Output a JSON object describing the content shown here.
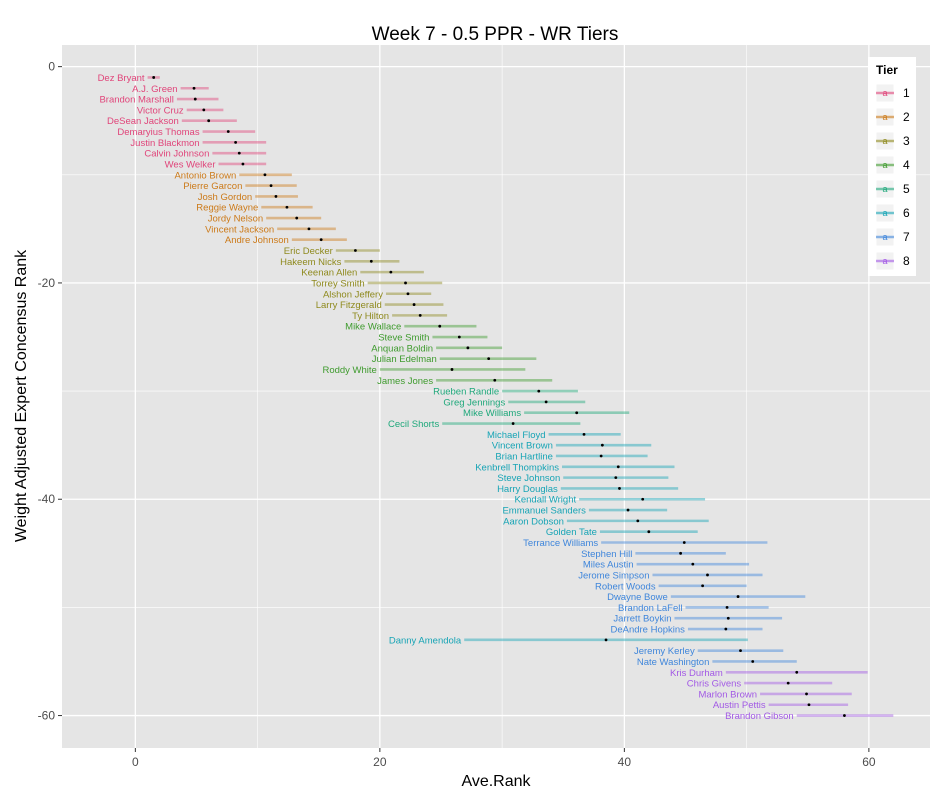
{
  "chart_data": {
    "type": "scatter",
    "title": "Week 7 - 0.5 PPR - WR Tiers",
    "xlabel": "Ave.Rank",
    "ylabel": "Weight Adjusted Expert Concensus Rank",
    "xlim": [
      -6,
      65
    ],
    "ylim": [
      -63,
      2
    ],
    "x_ticks": [
      0,
      20,
      40,
      60
    ],
    "y_ticks": [
      0,
      -20,
      -40,
      -60
    ],
    "grid": true,
    "legend": {
      "title": "Tier",
      "position": "top-right",
      "key_glyph": "a",
      "entries": [
        "1",
        "2",
        "3",
        "4",
        "5",
        "6",
        "7",
        "8"
      ]
    },
    "tier_colors": {
      "1": "#e0457a",
      "2": "#cc7a19",
      "3": "#8f8a1e",
      "4": "#3f9b2e",
      "5": "#1fa87b",
      "6": "#17a4b5",
      "7": "#3f86db",
      "8": "#a259e5"
    },
    "points": [
      {
        "name": "Dez Bryant",
        "tier": "1",
        "x": 1.5,
        "y": -1,
        "xmin": 1.0,
        "xmax": 2.0
      },
      {
        "name": "A.J. Green",
        "tier": "1",
        "x": 4.8,
        "y": -2,
        "xmin": 3.7,
        "xmax": 6.0
      },
      {
        "name": "Brandon Marshall",
        "tier": "1",
        "x": 4.9,
        "y": -3,
        "xmin": 3.4,
        "xmax": 6.8
      },
      {
        "name": "Victor Cruz",
        "tier": "1",
        "x": 5.6,
        "y": -4,
        "xmin": 4.2,
        "xmax": 7.2
      },
      {
        "name": "DeSean Jackson",
        "tier": "1",
        "x": 6.0,
        "y": -5,
        "xmin": 3.8,
        "xmax": 8.3
      },
      {
        "name": "Demaryius Thomas",
        "tier": "1",
        "x": 7.6,
        "y": -6,
        "xmin": 5.5,
        "xmax": 9.8
      },
      {
        "name": "Justin Blackmon",
        "tier": "1",
        "x": 8.2,
        "y": -7,
        "xmin": 5.5,
        "xmax": 10.7
      },
      {
        "name": "Calvin Johnson",
        "tier": "1",
        "x": 8.5,
        "y": -8,
        "xmin": 6.3,
        "xmax": 10.7
      },
      {
        "name": "Wes Welker",
        "tier": "1",
        "x": 8.8,
        "y": -9,
        "xmin": 6.8,
        "xmax": 10.7
      },
      {
        "name": "Antonio Brown",
        "tier": "2",
        "x": 10.6,
        "y": -10,
        "xmin": 8.5,
        "xmax": 12.8
      },
      {
        "name": "Pierre Garcon",
        "tier": "2",
        "x": 11.1,
        "y": -11,
        "xmin": 9.0,
        "xmax": 13.2
      },
      {
        "name": "Josh Gordon",
        "tier": "2",
        "x": 11.5,
        "y": -12,
        "xmin": 9.8,
        "xmax": 13.3
      },
      {
        "name": "Reggie Wayne",
        "tier": "2",
        "x": 12.4,
        "y": -13,
        "xmin": 10.3,
        "xmax": 14.5
      },
      {
        "name": "Jordy Nelson",
        "tier": "2",
        "x": 13.2,
        "y": -14,
        "xmin": 10.7,
        "xmax": 15.2
      },
      {
        "name": "Vincent Jackson",
        "tier": "2",
        "x": 14.2,
        "y": -15,
        "xmin": 11.6,
        "xmax": 16.4
      },
      {
        "name": "Andre Johnson",
        "tier": "2",
        "x": 15.2,
        "y": -16,
        "xmin": 12.8,
        "xmax": 17.3
      },
      {
        "name": "Eric Decker",
        "tier": "3",
        "x": 18.0,
        "y": -17,
        "xmin": 16.4,
        "xmax": 20.0
      },
      {
        "name": "Hakeem Nicks",
        "tier": "3",
        "x": 19.3,
        "y": -18,
        "xmin": 17.1,
        "xmax": 21.6
      },
      {
        "name": "Keenan Allen",
        "tier": "3",
        "x": 20.9,
        "y": -19,
        "xmin": 18.4,
        "xmax": 23.6
      },
      {
        "name": "Torrey Smith",
        "tier": "3",
        "x": 22.1,
        "y": -20,
        "xmin": 19.0,
        "xmax": 25.1
      },
      {
        "name": "Alshon Jeffery",
        "tier": "3",
        "x": 22.3,
        "y": -21,
        "xmin": 20.5,
        "xmax": 24.2
      },
      {
        "name": "Larry Fitzgerald",
        "tier": "3",
        "x": 22.8,
        "y": -22,
        "xmin": 20.4,
        "xmax": 25.2
      },
      {
        "name": "Ty Hilton",
        "tier": "3",
        "x": 23.3,
        "y": -23,
        "xmin": 21.0,
        "xmax": 25.5
      },
      {
        "name": "Mike Wallace",
        "tier": "4",
        "x": 24.9,
        "y": -24,
        "xmin": 22.0,
        "xmax": 27.9
      },
      {
        "name": "Steve Smith",
        "tier": "4",
        "x": 26.5,
        "y": -25,
        "xmin": 24.3,
        "xmax": 28.8
      },
      {
        "name": "Anquan Boldin",
        "tier": "4",
        "x": 27.2,
        "y": -26,
        "xmin": 24.6,
        "xmax": 30.0
      },
      {
        "name": "Julian Edelman",
        "tier": "4",
        "x": 28.9,
        "y": -27,
        "xmin": 24.9,
        "xmax": 32.8
      },
      {
        "name": "Roddy White",
        "tier": "4",
        "x": 25.9,
        "y": -28,
        "xmin": 20.0,
        "xmax": 31.9
      },
      {
        "name": "James Jones",
        "tier": "4",
        "x": 29.4,
        "y": -29,
        "xmin": 24.6,
        "xmax": 34.1
      },
      {
        "name": "Rueben Randle",
        "tier": "5",
        "x": 33.0,
        "y": -30,
        "xmin": 30.0,
        "xmax": 36.2
      },
      {
        "name": "Greg Jennings",
        "tier": "5",
        "x": 33.6,
        "y": -31,
        "xmin": 30.5,
        "xmax": 36.8
      },
      {
        "name": "Mike Williams",
        "tier": "5",
        "x": 36.1,
        "y": -32,
        "xmin": 31.8,
        "xmax": 40.4
      },
      {
        "name": "Cecil Shorts",
        "tier": "5",
        "x": 30.9,
        "y": -33,
        "xmin": 25.1,
        "xmax": 36.4
      },
      {
        "name": "Michael Floyd",
        "tier": "6",
        "x": 36.7,
        "y": -34,
        "xmin": 33.8,
        "xmax": 39.7
      },
      {
        "name": "Vincent Brown",
        "tier": "6",
        "x": 38.2,
        "y": -35,
        "xmin": 34.4,
        "xmax": 42.2
      },
      {
        "name": "Brian Hartline",
        "tier": "6",
        "x": 38.1,
        "y": -36,
        "xmin": 34.4,
        "xmax": 41.9
      },
      {
        "name": "Kenbrell Thompkins",
        "tier": "6",
        "x": 39.5,
        "y": -37,
        "xmin": 34.9,
        "xmax": 44.1
      },
      {
        "name": "Steve Johnson",
        "tier": "6",
        "x": 39.3,
        "y": -38,
        "xmin": 35.0,
        "xmax": 43.6
      },
      {
        "name": "Harry Douglas",
        "tier": "6",
        "x": 39.6,
        "y": -39,
        "xmin": 34.8,
        "xmax": 44.4
      },
      {
        "name": "Kendall Wright",
        "tier": "6",
        "x": 41.5,
        "y": -40,
        "xmin": 36.3,
        "xmax": 46.6
      },
      {
        "name": "Emmanuel Sanders",
        "tier": "6",
        "x": 40.3,
        "y": -41,
        "xmin": 37.1,
        "xmax": 43.5
      },
      {
        "name": "Aaron Dobson",
        "tier": "6",
        "x": 41.1,
        "y": -42,
        "xmin": 35.3,
        "xmax": 46.9
      },
      {
        "name": "Golden Tate",
        "tier": "6",
        "x": 42.0,
        "y": -43,
        "xmin": 38.0,
        "xmax": 46.0
      },
      {
        "name": "Terrance Williams",
        "tier": "7",
        "x": 44.9,
        "y": -44,
        "xmin": 38.1,
        "xmax": 51.7
      },
      {
        "name": "Stephen Hill",
        "tier": "7",
        "x": 44.6,
        "y": -45,
        "xmin": 40.9,
        "xmax": 48.3
      },
      {
        "name": "Miles Austin",
        "tier": "7",
        "x": 45.6,
        "y": -46,
        "xmin": 41.0,
        "xmax": 50.2
      },
      {
        "name": "Jerome Simpson",
        "tier": "7",
        "x": 46.8,
        "y": -47,
        "xmin": 42.3,
        "xmax": 51.3
      },
      {
        "name": "Robert Woods",
        "tier": "7",
        "x": 46.4,
        "y": -48,
        "xmin": 42.8,
        "xmax": 50.0
      },
      {
        "name": "Dwayne Bowe",
        "tier": "7",
        "x": 49.3,
        "y": -49,
        "xmin": 43.8,
        "xmax": 54.8
      },
      {
        "name": "Brandon LaFell",
        "tier": "7",
        "x": 48.4,
        "y": -50,
        "xmin": 45.0,
        "xmax": 51.8
      },
      {
        "name": "Jarrett Boykin",
        "tier": "7",
        "x": 48.5,
        "y": -51,
        "xmin": 44.1,
        "xmax": 52.9
      },
      {
        "name": "DeAndre Hopkins",
        "tier": "7",
        "x": 48.3,
        "y": -52,
        "xmin": 45.2,
        "xmax": 51.3
      },
      {
        "name": "Danny Amendola",
        "tier": "6",
        "x": 38.5,
        "y": -53,
        "xmin": 26.9,
        "xmax": 50.1
      },
      {
        "name": "Jeremy Kerley",
        "tier": "7",
        "x": 49.5,
        "y": -54,
        "xmin": 46.0,
        "xmax": 53.0
      },
      {
        "name": "Nate Washington",
        "tier": "7",
        "x": 50.5,
        "y": -55,
        "xmin": 47.2,
        "xmax": 54.1
      },
      {
        "name": "Kris Durham",
        "tier": "8",
        "x": 54.1,
        "y": -56,
        "xmin": 48.3,
        "xmax": 59.9
      },
      {
        "name": "Chris Givens",
        "tier": "8",
        "x": 53.4,
        "y": -57,
        "xmin": 49.8,
        "xmax": 57.0
      },
      {
        "name": "Marlon Brown",
        "tier": "8",
        "x": 54.9,
        "y": -58,
        "xmin": 51.1,
        "xmax": 58.6
      },
      {
        "name": "Austin Pettis",
        "tier": "8",
        "x": 55.1,
        "y": -59,
        "xmin": 51.8,
        "xmax": 58.3
      },
      {
        "name": "Brandon Gibson",
        "tier": "8",
        "x": 58.0,
        "y": -60,
        "xmin": 54.1,
        "xmax": 62.0
      }
    ]
  }
}
